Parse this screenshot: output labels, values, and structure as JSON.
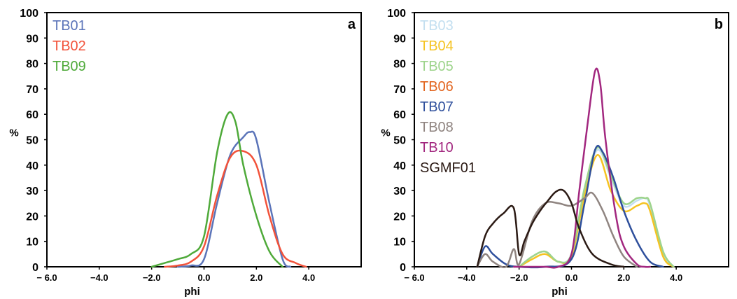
{
  "chart_data": [
    {
      "type": "line",
      "panel_label": "a",
      "xlabel": "phi",
      "ylabel": "%",
      "xlim": [
        -6,
        6
      ],
      "ylim": [
        0,
        100
      ],
      "x_ticks": [
        -6,
        -4,
        -2,
        0,
        2,
        4
      ],
      "x_tick_labels": [
        "− 6.0",
        "−4.0",
        "−2.0",
        "0.0",
        "2.0",
        "4.0"
      ],
      "y_ticks": [
        0,
        10,
        20,
        30,
        40,
        50,
        60,
        70,
        80,
        90,
        100
      ],
      "y_tick_labels": [
        "0",
        "10",
        "20",
        "30",
        "40",
        "50",
        "60",
        "70",
        "80",
        "90",
        "100"
      ],
      "grid": false,
      "legend": "top-left",
      "series": [
        {
          "name": "TB01",
          "color": "#5b74b9",
          "x": [
            -1.0,
            -0.5,
            0.0,
            0.5,
            1.0,
            1.5,
            1.75,
            2.0,
            2.5,
            3.0,
            3.3
          ],
          "y": [
            0,
            0.5,
            3,
            25,
            44,
            51,
            53,
            50,
            25,
            3,
            0
          ]
        },
        {
          "name": "TB02",
          "color": "#f2523a",
          "x": [
            -1.5,
            -1.0,
            -0.5,
            0.0,
            0.5,
            1.0,
            1.5,
            2.0,
            2.5,
            3.0,
            3.5,
            3.9
          ],
          "y": [
            0,
            0.5,
            2,
            8,
            28,
            43,
            45.5,
            40,
            20,
            5,
            1.5,
            0
          ]
        },
        {
          "name": "TB09",
          "color": "#4faa3a",
          "x": [
            -2.0,
            -1.5,
            -1.0,
            -0.5,
            0.0,
            0.5,
            0.9,
            1.2,
            1.5,
            2.0,
            2.5,
            3.0
          ],
          "y": [
            0,
            1.5,
            3,
            5,
            12,
            45,
            60,
            57,
            40,
            20,
            6,
            0
          ]
        }
      ]
    },
    {
      "type": "line",
      "panel_label": "b",
      "xlabel": "phi",
      "ylabel": "%",
      "xlim": [
        -6,
        6
      ],
      "ylim": [
        0,
        100
      ],
      "x_ticks": [
        -6,
        -4,
        -2,
        0,
        2,
        4
      ],
      "x_tick_labels": [
        "− 6.0",
        "−4.0",
        "−2.0",
        "0.0",
        "2.0",
        "4.0"
      ],
      "y_ticks": [
        0,
        10,
        20,
        30,
        40,
        50,
        60,
        70,
        80,
        90,
        100
      ],
      "y_tick_labels": [
        "0",
        "10",
        "20",
        "30",
        "40",
        "50",
        "60",
        "70",
        "80",
        "90",
        "100"
      ],
      "grid": false,
      "legend": "top-left",
      "series": [
        {
          "name": "TB03",
          "color": "#c3dff0",
          "x": [
            -2.0,
            -1.5,
            -1.0,
            -0.5,
            0.0,
            0.5,
            1.0,
            1.5,
            2.0,
            2.5,
            2.8,
            3.0,
            3.5,
            3.9
          ],
          "y": [
            0,
            4,
            6,
            2,
            5,
            30,
            46,
            35,
            24,
            26,
            27,
            24,
            5,
            0
          ]
        },
        {
          "name": "TB04",
          "color": "#f5c322",
          "x": [
            -2.0,
            -1.5,
            -1.0,
            -0.5,
            0.0,
            0.5,
            1.0,
            1.5,
            2.0,
            2.5,
            2.8,
            3.0,
            3.5,
            3.9
          ],
          "y": [
            0,
            3,
            5,
            2,
            4,
            28,
            44,
            30,
            22,
            24,
            25,
            22,
            4,
            0
          ]
        },
        {
          "name": "TB05",
          "color": "#9ed48c",
          "x": [
            -2.0,
            -1.5,
            -1.0,
            -0.5,
            0.0,
            0.5,
            1.0,
            1.5,
            2.0,
            2.5,
            2.8,
            3.0,
            3.5,
            3.9
          ],
          "y": [
            0,
            4,
            6,
            2,
            5,
            31,
            47,
            36,
            25,
            27,
            27,
            25,
            6,
            0
          ]
        },
        {
          "name": "TB06",
          "color": "#e2651f",
          "x": [
            0.0
          ],
          "y": [
            0
          ]
        },
        {
          "name": "TB07",
          "color": "#2e4f9c",
          "x": [
            -3.6,
            -3.3,
            -3.0,
            -2.5,
            -2.0,
            -1.0,
            0.0,
            0.5,
            0.9,
            1.2,
            1.6,
            2.0,
            2.5,
            3.0,
            3.5
          ],
          "y": [
            0,
            8,
            5,
            1,
            0,
            0,
            3,
            25,
            46,
            45,
            35,
            22,
            10,
            2,
            0
          ]
        },
        {
          "name": "TB08",
          "color": "#8f8480",
          "x": [
            -3.6,
            -3.3,
            -3.0,
            -2.5,
            -2.2,
            -2.0,
            -1.5,
            -1.0,
            -0.5,
            0.0,
            0.5,
            0.8,
            1.2,
            1.6,
            2.0,
            2.5
          ],
          "y": [
            0,
            5,
            2,
            0,
            7,
            1,
            18,
            25,
            25,
            24,
            27,
            29,
            22,
            12,
            4,
            0
          ]
        },
        {
          "name": "TB10",
          "color": "#a2277f",
          "x": [
            -2.2,
            -1.5,
            -1.0,
            -0.5,
            0.0,
            0.3,
            0.6,
            0.9,
            1.1,
            1.3,
            1.7,
            2.0,
            2.5,
            2.8,
            3.0
          ],
          "y": [
            0,
            0,
            0,
            0,
            5,
            30,
            55,
            77,
            72,
            50,
            20,
            8,
            1,
            0,
            0
          ]
        },
        {
          "name": "SGMF01",
          "color": "#2b1a14",
          "x": [
            -3.6,
            -3.3,
            -3.0,
            -2.6,
            -2.2,
            -2.0,
            -1.8,
            -1.5,
            -1.2,
            -0.9,
            -0.6,
            -0.3,
            0.0,
            0.3,
            0.8,
            1.5,
            2.0
          ],
          "y": [
            0,
            12,
            17,
            21,
            23,
            5,
            10,
            17,
            22,
            26,
            29.5,
            30,
            25,
            15,
            5,
            1,
            0
          ]
        }
      ]
    }
  ]
}
